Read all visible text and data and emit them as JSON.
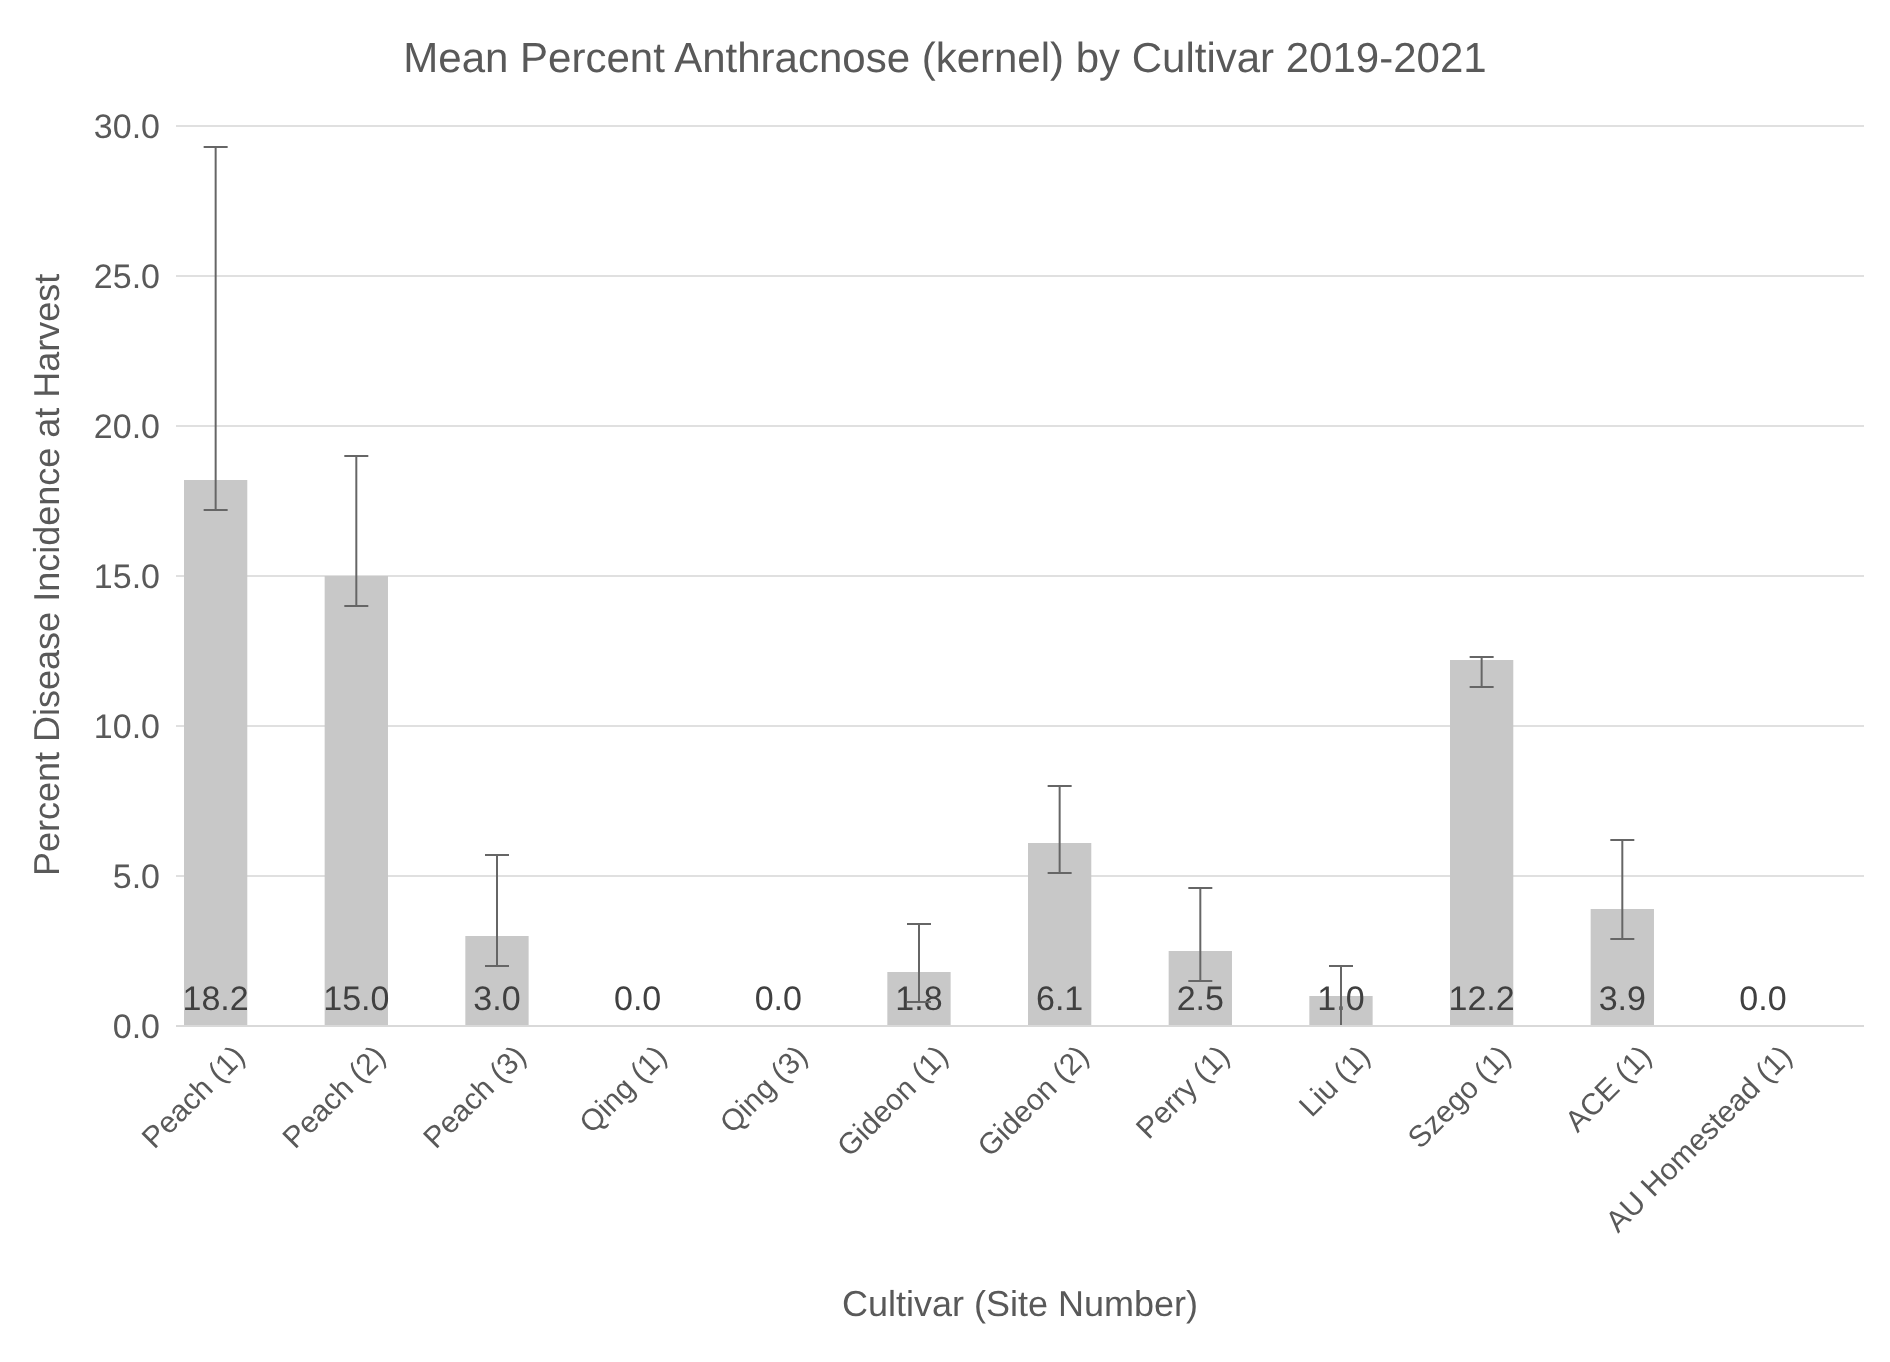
{
  "chart_data": {
    "type": "bar",
    "title": "Mean Percent Anthracnose (kernel) by Cultivar 2019-2021",
    "xlabel": "Cultivar (Site Number)",
    "ylabel": "Percent Disease Incidence at Harvest",
    "categories": [
      "Peach (1)",
      "Peach (2)",
      "Peach (3)",
      "Qing (1)",
      "Qing (3)",
      "Gideon (1)",
      "Gideon (2)",
      "Perry (1)",
      "Liu (1)",
      "Szego (1)",
      "ACE (1)",
      "AU Homestead (1)"
    ],
    "values": [
      18.2,
      15.0,
      3.0,
      0.0,
      0.0,
      1.8,
      6.1,
      2.5,
      1.0,
      12.2,
      3.9,
      0.0
    ],
    "errors": [
      [
        17.2,
        29.3
      ],
      [
        14.0,
        19.0
      ],
      [
        2.0,
        5.7
      ],
      null,
      null,
      [
        0.8,
        3.4
      ],
      [
        5.1,
        8.0
      ],
      [
        1.5,
        4.6
      ],
      [
        0.0,
        2.0
      ],
      [
        11.3,
        12.3
      ],
      [
        2.9,
        6.2
      ],
      null
    ],
    "value_labels": [
      "18.2",
      "15.0",
      "3.0",
      "0.0",
      "0.0",
      "1.8",
      "6.1",
      "2.5",
      "1.0",
      "12.2",
      "3.9",
      "0.0"
    ],
    "color": "#c8c8c8",
    "ylim": [
      0,
      30
    ],
    "yticks": [
      {
        "value": 0,
        "label": "0.0"
      },
      {
        "value": 5,
        "label": "5.0"
      },
      {
        "value": 10,
        "label": "10.0"
      },
      {
        "value": 15,
        "label": "15.0"
      },
      {
        "value": 20,
        "label": "20.0"
      },
      {
        "value": 25,
        "label": "25.0"
      },
      {
        "value": 30,
        "label": "30.0"
      }
    ],
    "grid": "y",
    "legend": false
  }
}
